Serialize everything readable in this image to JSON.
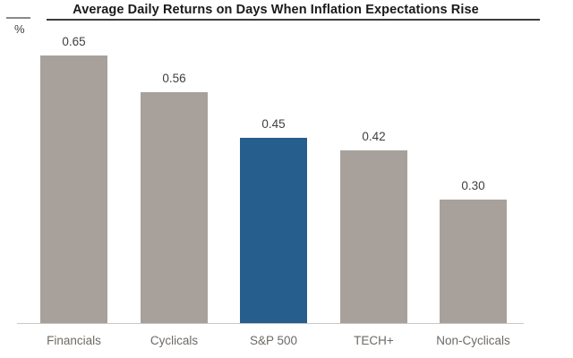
{
  "chart_data": {
    "type": "bar",
    "title": "Average Daily Returns on Days When Inflation Expectations Rise",
    "unit_label": "%",
    "categories": [
      "Financials",
      "Cyclicals",
      "S&P 500",
      "TECH+",
      "Non-Cyclicals"
    ],
    "values": [
      0.65,
      0.56,
      0.45,
      0.42,
      0.3
    ],
    "value_labels": [
      "0.65",
      "0.56",
      "0.45",
      "0.42",
      "0.30"
    ],
    "highlight_index": 2,
    "highlight_category": "S&P 500",
    "ylim": [
      0,
      0.7
    ],
    "grid": false,
    "legend": false,
    "colors": {
      "bar_default": "#a8a19b",
      "bar_highlight": "#265e8e",
      "baseline": "#c8c8c8",
      "title_text": "#1a1a1a",
      "title_underline": "#3c3c3c",
      "value_label": "#3f3f3f",
      "category_label": "#6e6a66",
      "background": "#ffffff"
    }
  }
}
